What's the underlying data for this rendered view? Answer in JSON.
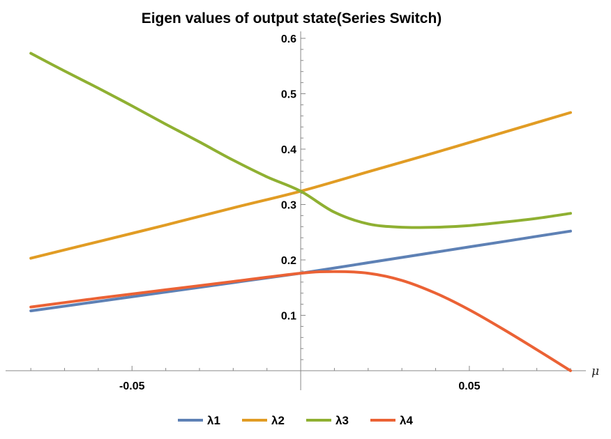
{
  "chart_data": {
    "type": "line",
    "title": "Eigen values of output state(Series Switch)",
    "xlabel": "μ",
    "ylabel": "",
    "xlim": [
      -0.085,
      0.08
    ],
    "ylim": [
      -0.01,
      0.6
    ],
    "xticks_major": [
      -0.05,
      0.05
    ],
    "xtick_labels": [
      "-0.05",
      "0.05"
    ],
    "yticks_major": [
      0.1,
      0.2,
      0.3,
      0.4,
      0.5,
      0.6
    ],
    "ytick_labels": [
      "0.1",
      "0.2",
      "0.3",
      "0.4",
      "0.5",
      "0.6"
    ],
    "grid": false,
    "legend": "bottom",
    "series": [
      {
        "name": "λ1",
        "color": "#5e81b5",
        "x": [
          -0.08,
          -0.06,
          -0.04,
          -0.02,
          0.0,
          0.02,
          0.04,
          0.06,
          0.08
        ],
        "y": [
          0.108,
          0.125,
          0.142,
          0.159,
          0.176,
          0.195,
          0.214,
          0.233,
          0.252
        ]
      },
      {
        "name": "λ2",
        "color": "#e19c24",
        "x": [
          -0.08,
          -0.06,
          -0.04,
          -0.02,
          0.0,
          0.02,
          0.04,
          0.06,
          0.08
        ],
        "y": [
          0.203,
          0.233,
          0.263,
          0.294,
          0.324,
          0.359,
          0.394,
          0.43,
          0.466
        ]
      },
      {
        "name": "λ3",
        "color": "#8fb032",
        "x": [
          -0.08,
          -0.07,
          -0.06,
          -0.05,
          -0.04,
          -0.03,
          -0.02,
          -0.01,
          0.0,
          0.01,
          0.02,
          0.03,
          0.04,
          0.05,
          0.06,
          0.07,
          0.08
        ],
        "y": [
          0.573,
          0.541,
          0.51,
          0.478,
          0.445,
          0.413,
          0.38,
          0.35,
          0.324,
          0.286,
          0.265,
          0.259,
          0.259,
          0.262,
          0.268,
          0.275,
          0.284
        ]
      },
      {
        "name": "λ4",
        "color": "#eb6235",
        "x": [
          -0.08,
          -0.06,
          -0.04,
          -0.02,
          0.0,
          0.01,
          0.02,
          0.03,
          0.04,
          0.05,
          0.06,
          0.07,
          0.08
        ],
        "y": [
          0.115,
          0.131,
          0.146,
          0.161,
          0.176,
          0.179,
          0.176,
          0.163,
          0.14,
          0.11,
          0.075,
          0.038,
          0.0
        ]
      }
    ]
  }
}
